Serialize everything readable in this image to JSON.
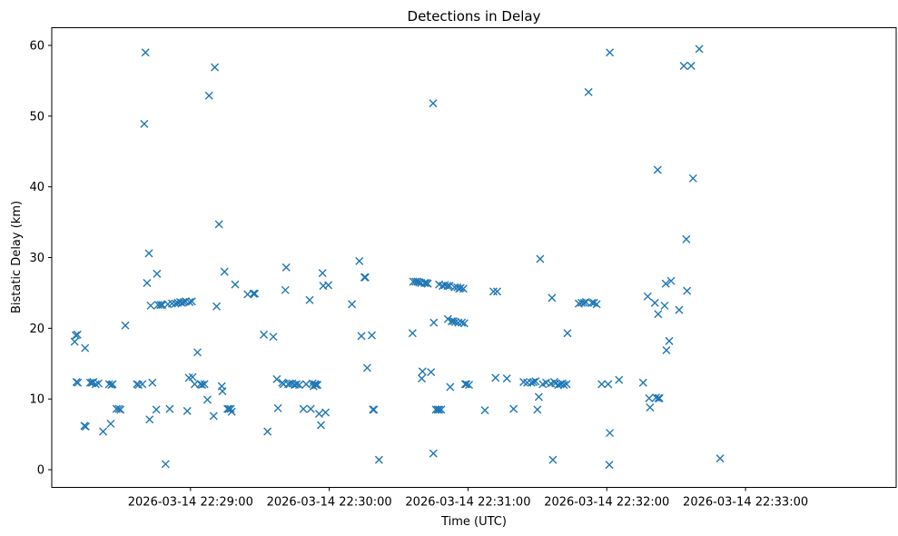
{
  "chart_data": {
    "type": "scatter",
    "title": "Detections in Delay",
    "xlabel": "Time (UTC)",
    "ylabel": "Bistatic Delay (km)",
    "x_unit": "seconds after 2026-03-14 22:28:00 UTC",
    "xlim": [
      -30,
      332
    ],
    "ylim": [
      -2.5,
      62.5
    ],
    "x_ticks": [
      {
        "value": 30,
        "label": "2026-03-14 22:29:00"
      },
      {
        "value": 90,
        "label": "2026-03-14 22:30:00"
      },
      {
        "value": 150,
        "label": "2026-03-14 22:31:00"
      },
      {
        "value": 210,
        "label": "2026-03-14 22:32:00"
      },
      {
        "value": 270,
        "label": "2026-03-14 22:33:00"
      }
    ],
    "y_ticks": [
      0,
      10,
      20,
      30,
      40,
      50,
      60
    ],
    "grid": false,
    "marker": "x",
    "color": "#1f77b4",
    "points": [
      [
        -20.1,
        18.1
      ],
      [
        -19.6,
        19.0
      ],
      [
        -18.9,
        19.1
      ],
      [
        -19.3,
        12.4
      ],
      [
        -18.7,
        12.3
      ],
      [
        -15.6,
        17.2
      ],
      [
        -15.9,
        6.2
      ],
      [
        -15.3,
        6.1
      ],
      [
        -13.4,
        12.3
      ],
      [
        -12.6,
        12.3
      ],
      [
        -12.0,
        12.4
      ],
      [
        -11.0,
        12.1
      ],
      [
        -9.8,
        12.2
      ],
      [
        -7.8,
        5.4
      ],
      [
        -5.2,
        12.1
      ],
      [
        -4.5,
        6.5
      ],
      [
        -4.2,
        12.0
      ],
      [
        -3.7,
        12.1
      ],
      [
        -2.0,
        8.6
      ],
      [
        -1.0,
        8.6
      ],
      [
        -0.3,
        8.5
      ],
      [
        1.8,
        20.4
      ],
      [
        6.8,
        12.1
      ],
      [
        9.2,
        12.1
      ],
      [
        7.5,
        12.0
      ],
      [
        10.0,
        48.9
      ],
      [
        10.5,
        59.0
      ],
      [
        11.2,
        26.4
      ],
      [
        12.0,
        30.6
      ],
      [
        12.8,
        23.2
      ],
      [
        12.3,
        7.1
      ],
      [
        13.5,
        12.3
      ],
      [
        15.2,
        8.5
      ],
      [
        16.0,
        23.3
      ],
      [
        15.5,
        27.7
      ],
      [
        17.0,
        23.3
      ],
      [
        17.8,
        23.3
      ],
      [
        19.2,
        0.8
      ],
      [
        20.2,
        23.4
      ],
      [
        21.0,
        8.6
      ],
      [
        22.0,
        23.5
      ],
      [
        23.5,
        23.5
      ],
      [
        24.5,
        23.6
      ],
      [
        25.5,
        23.7
      ],
      [
        26.3,
        23.6
      ],
      [
        27.1,
        23.7
      ],
      [
        27.9,
        23.8
      ],
      [
        28.6,
        8.3
      ],
      [
        29.3,
        13.0
      ],
      [
        29.6,
        23.7
      ],
      [
        30.6,
        23.8
      ],
      [
        30.9,
        13.1
      ],
      [
        31.8,
        12.1
      ],
      [
        33.0,
        16.6
      ],
      [
        34.3,
        12.1
      ],
      [
        35.0,
        12.0
      ],
      [
        36.0,
        12.1
      ],
      [
        37.3,
        9.9
      ],
      [
        38.0,
        52.9
      ],
      [
        40.5,
        56.9
      ],
      [
        40.0,
        7.6
      ],
      [
        41.3,
        23.1
      ],
      [
        42.3,
        34.7
      ],
      [
        43.5,
        11.8
      ],
      [
        43.8,
        11.1
      ],
      [
        44.7,
        28.0
      ],
      [
        46.0,
        8.6
      ],
      [
        46.6,
        8.6
      ],
      [
        47.4,
        8.6
      ],
      [
        47.8,
        8.2
      ],
      [
        49.3,
        26.2
      ],
      [
        54.7,
        24.8
      ],
      [
        57.2,
        24.9
      ],
      [
        57.8,
        24.9
      ],
      [
        61.7,
        19.1
      ],
      [
        63.3,
        5.4
      ],
      [
        65.8,
        18.8
      ],
      [
        67.3,
        12.8
      ],
      [
        67.8,
        8.7
      ],
      [
        69.7,
        12.3
      ],
      [
        70.2,
        12.1
      ],
      [
        71.0,
        25.4
      ],
      [
        71.4,
        28.6
      ],
      [
        72.3,
        12.1
      ],
      [
        73.0,
        12.2
      ],
      [
        74.0,
        12.2
      ],
      [
        75.1,
        12.0
      ],
      [
        75.9,
        12.1
      ],
      [
        77.0,
        12.0
      ],
      [
        78.8,
        8.6
      ],
      [
        80.0,
        12.1
      ],
      [
        81.5,
        24.0
      ],
      [
        82.0,
        8.6
      ],
      [
        82.8,
        12.2
      ],
      [
        83.2,
        11.8
      ],
      [
        83.8,
        12.1
      ],
      [
        84.3,
        12.0
      ],
      [
        84.9,
        12.0
      ],
      [
        85.6,
        7.9
      ],
      [
        86.4,
        6.3
      ],
      [
        87.1,
        27.8
      ],
      [
        87.4,
        26.0
      ],
      [
        88.4,
        8.1
      ],
      [
        89.6,
        26.1
      ],
      [
        99.8,
        23.4
      ],
      [
        103.0,
        29.5
      ],
      [
        103.9,
        18.9
      ],
      [
        105.2,
        27.2
      ],
      [
        105.6,
        27.2
      ],
      [
        106.4,
        14.4
      ],
      [
        108.4,
        19.0
      ],
      [
        108.9,
        8.5
      ],
      [
        109.3,
        8.5
      ],
      [
        111.5,
        1.4
      ],
      [
        126.0,
        19.3
      ],
      [
        126.3,
        26.6
      ],
      [
        127.3,
        26.6
      ],
      [
        128.2,
        26.6
      ],
      [
        128.9,
        26.5
      ],
      [
        129.7,
        26.4
      ],
      [
        130.0,
        12.9
      ],
      [
        130.3,
        13.9
      ],
      [
        131.2,
        26.4
      ],
      [
        132.0,
        26.4
      ],
      [
        132.6,
        26.3
      ],
      [
        134.0,
        13.8
      ],
      [
        134.9,
        51.8
      ],
      [
        135.2,
        20.8
      ],
      [
        135.0,
        2.3
      ],
      [
        136.1,
        8.5
      ],
      [
        136.9,
        8.5
      ],
      [
        137.5,
        8.5
      ],
      [
        138.4,
        8.5
      ],
      [
        137.5,
        26.2
      ],
      [
        139.0,
        26.0
      ],
      [
        140.0,
        26.1
      ],
      [
        141.1,
        26.0
      ],
      [
        142.0,
        26.0
      ],
      [
        141.3,
        21.3
      ],
      [
        142.3,
        11.7
      ],
      [
        142.9,
        21.0
      ],
      [
        143.7,
        21.0
      ],
      [
        144.5,
        20.9
      ],
      [
        144.2,
        25.8
      ],
      [
        145.4,
        25.8
      ],
      [
        145.8,
        20.8
      ],
      [
        146.2,
        25.6
      ],
      [
        146.8,
        25.7
      ],
      [
        147.3,
        20.8
      ],
      [
        148.0,
        25.6
      ],
      [
        148.4,
        20.7
      ],
      [
        148.8,
        12.1
      ],
      [
        149.3,
        12.1
      ],
      [
        150.4,
        12.0
      ],
      [
        161.0,
        25.2
      ],
      [
        162.6,
        25.2
      ],
      [
        161.9,
        13.0
      ],
      [
        166.8,
        12.9
      ],
      [
        169.7,
        8.6
      ],
      [
        157.3,
        8.4
      ],
      [
        174.0,
        12.4
      ],
      [
        175.6,
        12.3
      ],
      [
        177.4,
        12.3
      ],
      [
        178.3,
        12.4
      ],
      [
        180.0,
        8.5
      ],
      [
        180.6,
        10.3
      ],
      [
        181.2,
        29.8
      ],
      [
        179.2,
        12.5
      ],
      [
        182.3,
        12.1
      ],
      [
        183.8,
        12.3
      ],
      [
        185.8,
        12.2
      ],
      [
        186.3,
        24.3
      ],
      [
        187.3,
        12.4
      ],
      [
        187.8,
        12.2
      ],
      [
        189.0,
        12.0
      ],
      [
        190.0,
        12.1
      ],
      [
        190.8,
        12.2
      ],
      [
        191.4,
        12.0
      ],
      [
        192.6,
        12.1
      ],
      [
        193.0,
        19.3
      ],
      [
        186.7,
        1.4
      ],
      [
        197.9,
        23.5
      ],
      [
        199.1,
        23.6
      ],
      [
        200.2,
        23.6
      ],
      [
        201.0,
        23.7
      ],
      [
        202.1,
        53.4
      ],
      [
        203.6,
        23.6
      ],
      [
        204.5,
        23.6
      ],
      [
        205.6,
        23.4
      ],
      [
        207.8,
        12.1
      ],
      [
        210.6,
        12.1
      ],
      [
        211.3,
        59.0
      ],
      [
        211.3,
        5.2
      ],
      [
        211.1,
        0.7
      ],
      [
        215.3,
        12.7
      ],
      [
        225.7,
        12.3
      ],
      [
        227.7,
        24.5
      ],
      [
        228.3,
        10.1
      ],
      [
        228.7,
        8.8
      ],
      [
        230.8,
        23.6
      ],
      [
        231.3,
        10.2
      ],
      [
        232.3,
        10.1
      ],
      [
        232.8,
        10.1
      ],
      [
        232.2,
        22.0
      ],
      [
        232.0,
        42.4
      ],
      [
        235.0,
        23.2
      ],
      [
        235.5,
        26.3
      ],
      [
        235.8,
        16.9
      ],
      [
        237.0,
        18.2
      ],
      [
        237.8,
        26.7
      ],
      [
        241.3,
        22.6
      ],
      [
        243.3,
        57.1
      ],
      [
        244.4,
        32.6
      ],
      [
        244.7,
        25.3
      ],
      [
        246.5,
        57.1
      ],
      [
        247.3,
        41.2
      ],
      [
        250.0,
        59.5
      ],
      [
        259.0,
        1.6
      ]
    ]
  }
}
